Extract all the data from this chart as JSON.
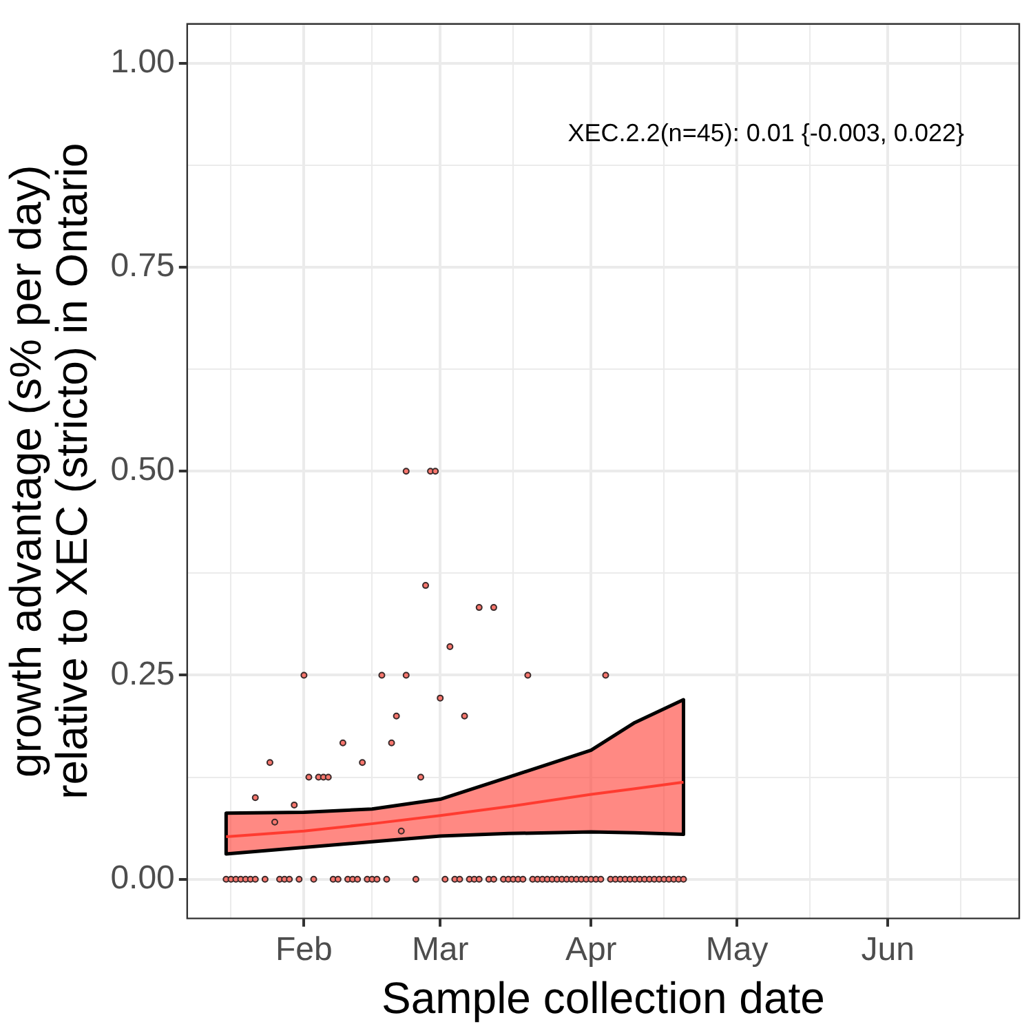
{
  "chart_data": {
    "type": "scatter",
    "xlabel": "Sample collection date",
    "ylabel": "growth advantage (s% per day)\nrelative to XEC (stricto) in Ontario",
    "xlim": [
      "--01-08",
      "--06-28"
    ],
    "xticks": [
      {
        "value": "--01-17",
        "label": null
      },
      {
        "value": "--02-01",
        "label": "Feb"
      },
      {
        "value": "--02-15",
        "label": null
      },
      {
        "value": "--03-01",
        "label": "Mar"
      },
      {
        "value": "--03-16",
        "label": null
      },
      {
        "value": "--04-01",
        "label": "Apr"
      },
      {
        "value": "--04-16",
        "label": null
      },
      {
        "value": "--05-01",
        "label": "May"
      },
      {
        "value": "--05-16",
        "label": null
      },
      {
        "value": "--06-01",
        "label": "Jun"
      },
      {
        "value": "--06-16",
        "label": null
      }
    ],
    "ylim": [
      -0.048,
      1.048
    ],
    "yticks": [
      {
        "value": 0,
        "label": "0.00"
      },
      {
        "value": 0.125,
        "label": null
      },
      {
        "value": 0.25,
        "label": "0.25"
      },
      {
        "value": 0.375,
        "label": null
      },
      {
        "value": 0.5,
        "label": "0.50"
      },
      {
        "value": 0.625,
        "label": null
      },
      {
        "value": 0.75,
        "label": "0.75"
      },
      {
        "value": 0.875,
        "label": null
      },
      {
        "value": 1,
        "label": "1.00"
      }
    ],
    "grid": true,
    "legend": false,
    "marker": "circle",
    "annotations": [
      "XEC.2.2(n=45): 0.01 {-0.003, 0.022}"
    ],
    "series": [
      {
        "type": "line",
        "color": "#ff3b30",
        "line_style": "solid",
        "marker": "none",
        "x": [
          "--01-16",
          "--02-01",
          "--02-15",
          "--03-01",
          "--03-15",
          "--04-01",
          "--04-10",
          "--04-20"
        ],
        "values": [
          0.052,
          0.059,
          0.068,
          0.078,
          0.089,
          0.104,
          0.111,
          0.119
        ],
        "lower": [
          0.031,
          0.039,
          0.046,
          0.053,
          0.056,
          0.058,
          0.057,
          0.055
        ],
        "upper": [
          0.081,
          0.082,
          0.086,
          0.098,
          0.125,
          0.158,
          0.192,
          0.22
        ]
      },
      {
        "color": "#f8766d",
        "x": [
          "--02-22",
          "--02-27",
          "--02-28",
          "--02-26",
          "--03-09",
          "--03-12",
          "--03-03",
          "--03-19",
          "--04-04",
          "--02-01",
          "--02-17",
          "--02-22",
          "--03-01",
          "--02-20",
          "--03-06",
          "--02-09",
          "--02-19",
          "--01-25",
          "--02-13",
          "--02-02",
          "--02-04",
          "--02-05",
          "--02-06",
          "--02-25",
          "--01-22",
          "--01-30",
          "--01-26",
          "--02-21",
          "--01-16",
          "--01-17",
          "--01-18",
          "--01-19",
          "--01-20",
          "--01-21",
          "--01-22",
          "--01-24",
          "--01-27",
          "--01-28",
          "--01-29",
          "--01-31",
          "--02-03",
          "--02-07",
          "--02-08",
          "--02-10",
          "--02-11",
          "--02-12",
          "--02-14",
          "--02-15",
          "--02-16",
          "--02-18",
          "--02-24",
          "--03-02",
          "--03-04",
          "--03-05",
          "--03-07",
          "--03-08",
          "--03-09",
          "--03-11",
          "--03-12",
          "--03-14",
          "--03-15",
          "--03-16",
          "--03-17",
          "--03-18",
          "--03-20",
          "--03-21",
          "--03-22",
          "--03-23",
          "--03-24",
          "--03-25",
          "--03-26",
          "--03-27",
          "--03-28",
          "--03-29",
          "--03-30",
          "--03-31",
          "--04-01",
          "--04-02",
          "--04-03",
          "--04-05",
          "--04-06",
          "--04-07",
          "--04-08",
          "--04-09",
          "--04-10",
          "--04-11",
          "--04-12",
          "--04-13",
          "--04-14",
          "--04-15",
          "--04-16",
          "--04-17",
          "--04-18",
          "--04-19",
          "--04-20"
        ],
        "values": [
          0.5,
          0.5,
          0.5,
          0.36,
          0.333,
          0.333,
          0.285,
          0.25,
          0.25,
          0.25,
          0.25,
          0.25,
          0.222,
          0.2,
          0.2,
          0.167,
          0.167,
          0.143,
          0.143,
          0.125,
          0.125,
          0.125,
          0.125,
          0.125,
          0.1,
          0.091,
          0.07,
          0.059,
          0,
          0,
          0,
          0,
          0,
          0,
          0,
          0,
          0,
          0,
          0,
          0,
          0,
          0,
          0,
          0,
          0,
          0,
          0,
          0,
          0,
          0,
          0,
          0,
          0,
          0,
          0,
          0,
          0,
          0,
          0,
          0,
          0,
          0,
          0,
          0,
          0,
          0,
          0,
          0,
          0,
          0,
          0,
          0,
          0,
          0,
          0,
          0,
          0,
          0,
          0,
          0,
          0,
          0,
          0,
          0,
          0,
          0,
          0,
          0,
          0,
          0,
          0,
          0,
          0,
          0,
          0
        ]
      }
    ]
  }
}
